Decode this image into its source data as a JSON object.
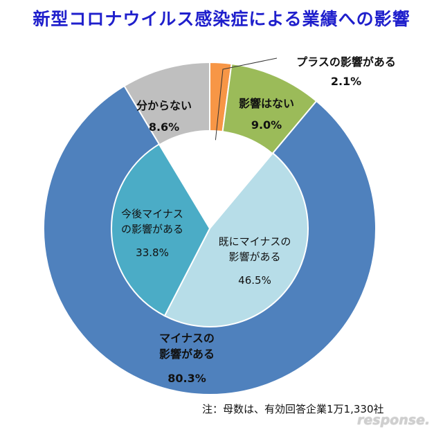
{
  "title": "新型コロナウイルス感染症による業績への影響",
  "note": "注：母数は、有効回答企業1万1,330社",
  "watermark": "response.",
  "chart_data": [
    {
      "type": "pie",
      "ring": "outer",
      "start_angle_deg": 0,
      "slices": [
        {
          "label": "プラスの影響がある",
          "value": 2.1,
          "value_label": "2.1%",
          "color": "#f79646"
        },
        {
          "label": "影響はない",
          "value": 9.0,
          "value_label": "9.0%",
          "color": "#9bbb59"
        },
        {
          "label": "マイナスの\n影響がある",
          "value": 80.3,
          "value_label": "80.3%",
          "color": "#4f81bd"
        },
        {
          "label": "分からない",
          "value": 8.6,
          "value_label": "8.6%",
          "color": "#bfbfbf"
        }
      ]
    },
    {
      "type": "pie",
      "ring": "inner",
      "start_angle_deg": 39.9,
      "slices": [
        {
          "label": "既にマイナスの\n影響がある",
          "value": 46.5,
          "value_label": "46.5%",
          "color": "#b7dde8"
        },
        {
          "label": "今後マイナス\nの影響がある",
          "value": 33.8,
          "value_label": "33.8%",
          "color": "#4bacc6"
        }
      ]
    }
  ]
}
